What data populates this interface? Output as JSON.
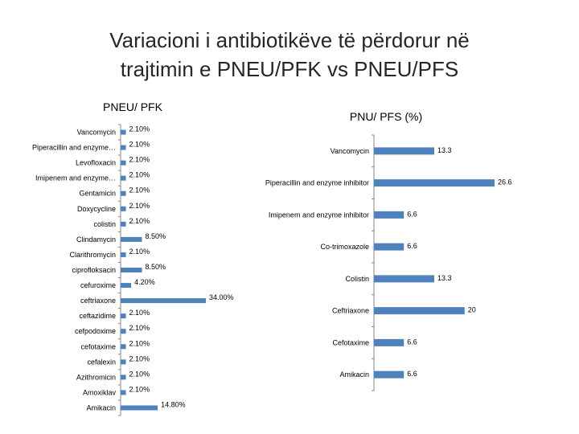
{
  "slide": {
    "title_line1": "Variacioni i antibiotikëve të përdorur në",
    "title_line2": "trajtimin e PNEU/PFK vs PNEU/PFS"
  },
  "colors": {
    "bar": "#4f81bd",
    "axis": "#868686",
    "title": "#262626"
  },
  "chart_data": [
    {
      "type": "bar",
      "orientation": "horizontal",
      "title": "PNEU/ PFK",
      "categories": [
        "Vancomycin",
        "Piperacillin and enzyme…",
        "Levofloxacin",
        "Imipenem and enzyme…",
        "Gentamicin",
        "Doxycycline",
        "colistin",
        "Clindamycin",
        "Clarithromycin",
        "ciprofloksacin",
        "cefuroxime",
        "ceftriaxone",
        "ceftazidime",
        "cefpodoxime",
        "cefotaxime",
        "cefalexin",
        "Azithromicin",
        "Amoxiklav",
        "Amikacin"
      ],
      "values": [
        2.1,
        2.1,
        2.1,
        2.1,
        2.1,
        2.1,
        2.1,
        8.5,
        2.1,
        8.5,
        4.2,
        34.0,
        2.1,
        2.1,
        2.1,
        2.1,
        2.1,
        2.1,
        14.8
      ],
      "value_labels": [
        "2.10%",
        "2.10%",
        "2.10%",
        "2.10%",
        "2.10%",
        "2.10%",
        "2.10%",
        "8.50%",
        "2.10%",
        "8.50%",
        "4.20%",
        "34.00%",
        "2.10%",
        "2.10%",
        "2.10%",
        "2.10%",
        "2.10%",
        "2.10%",
        "14.80%"
      ],
      "xlim": [
        0,
        34
      ],
      "grid": false,
      "legend": "none"
    },
    {
      "type": "bar",
      "orientation": "horizontal",
      "title": "PNU/ PFS (%)",
      "categories": [
        "Vancomycin",
        "Piperacillin and enzyme inhibitor",
        "Imipenem and enzyme inhibitor",
        "Co-trimoxazole",
        "Colistin",
        "Ceftriaxone",
        "Cefotaxime",
        "Amikacin"
      ],
      "values": [
        13.3,
        26.6,
        6.6,
        6.6,
        13.3,
        20,
        6.6,
        6.6
      ],
      "value_labels": [
        "13.3",
        "26.6",
        "6.6",
        "6.6",
        "13.3",
        "20",
        "6.6",
        "6.6"
      ],
      "xlim": [
        0,
        26.6
      ],
      "grid": false,
      "legend": "none"
    }
  ]
}
